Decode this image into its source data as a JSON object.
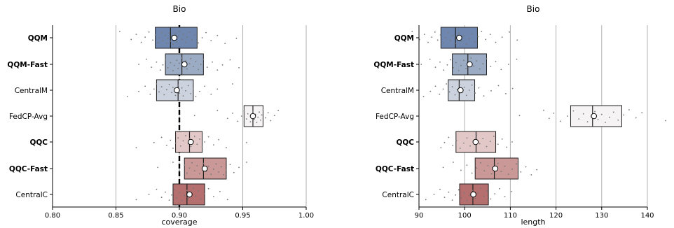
{
  "chart_data": [
    {
      "type": "box",
      "title": "Bio",
      "xlabel": "coverage",
      "ylabel": "",
      "xlim": [
        0.8,
        1.0
      ],
      "xticks": [
        "0.80",
        "0.85",
        "0.90",
        "0.95",
        "1.00"
      ],
      "xtick_values": [
        0.8,
        0.85,
        0.9,
        0.95,
        1.0
      ],
      "grid": "vertical",
      "reference_line": 0.9,
      "categories": [
        "QQM",
        "QQM-Fast",
        "CentralM",
        "FedCP-Avg",
        "QQC",
        "QQC-Fast",
        "CentralC"
      ],
      "bold_categories": [
        "QQM",
        "QQM-Fast",
        "QQC",
        "QQC-Fast"
      ],
      "boxes": [
        {
          "q1": 0.881,
          "median": 0.893,
          "q3": 0.914,
          "mean": 0.896,
          "color": "#6f87ae"
        },
        {
          "q1": 0.889,
          "median": 0.902,
          "q3": 0.919,
          "mean": 0.904,
          "color": "#9cabc4"
        },
        {
          "q1": 0.882,
          "median": 0.899,
          "q3": 0.911,
          "mean": 0.898,
          "color": "#cdd3de"
        },
        {
          "q1": 0.951,
          "median": 0.958,
          "q3": 0.966,
          "mean": 0.958,
          "color": "#f5f3f3"
        },
        {
          "q1": 0.897,
          "median": 0.908,
          "q3": 0.918,
          "mean": 0.909,
          "color": "#e2c8c7"
        },
        {
          "q1": 0.904,
          "median": 0.919,
          "q3": 0.937,
          "mean": 0.92,
          "color": "#c99897"
        },
        {
          "q1": 0.895,
          "median": 0.906,
          "q3": 0.92,
          "mean": 0.908,
          "color": "#b56f6e"
        }
      ],
      "points": [
        [
          0.853,
          0.862,
          0.866,
          0.87,
          0.873,
          0.876,
          0.879,
          0.881,
          0.883,
          0.884,
          0.886,
          0.887,
          0.889,
          0.89,
          0.891,
          0.892,
          0.893,
          0.894,
          0.895,
          0.896,
          0.897,
          0.898,
          0.899,
          0.9,
          0.902,
          0.903,
          0.905,
          0.906,
          0.908,
          0.91,
          0.912,
          0.915,
          0.918,
          0.921,
          0.925,
          0.93,
          0.936,
          0.945
        ],
        [
          0.868,
          0.874,
          0.878,
          0.882,
          0.885,
          0.887,
          0.889,
          0.891,
          0.893,
          0.895,
          0.896,
          0.898,
          0.899,
          0.9,
          0.902,
          0.903,
          0.905,
          0.906,
          0.908,
          0.909,
          0.911,
          0.913,
          0.915,
          0.917,
          0.919,
          0.922,
          0.926,
          0.93,
          0.934,
          0.94,
          0.947
        ],
        [
          0.859,
          0.868,
          0.873,
          0.877,
          0.88,
          0.882,
          0.884,
          0.886,
          0.888,
          0.89,
          0.892,
          0.894,
          0.895,
          0.897,
          0.898,
          0.899,
          0.9,
          0.902,
          0.903,
          0.905,
          0.907,
          0.909,
          0.911,
          0.913,
          0.916,
          0.92,
          0.925,
          0.93,
          0.942
        ],
        [
          0.912,
          0.93,
          0.938,
          0.942,
          0.946,
          0.949,
          0.951,
          0.953,
          0.954,
          0.956,
          0.957,
          0.958,
          0.959,
          0.96,
          0.961,
          0.962,
          0.963,
          0.964,
          0.965,
          0.966,
          0.968,
          0.97,
          0.972,
          0.975,
          0.978
        ],
        [
          0.866,
          0.88,
          0.886,
          0.89,
          0.893,
          0.895,
          0.897,
          0.899,
          0.901,
          0.903,
          0.905,
          0.907,
          0.908,
          0.909,
          0.911,
          0.912,
          0.914,
          0.916,
          0.918,
          0.92,
          0.923,
          0.927,
          0.931,
          0.937,
          0.953
        ],
        [
          0.883,
          0.895,
          0.9,
          0.904,
          0.906,
          0.908,
          0.91,
          0.912,
          0.914,
          0.916,
          0.918,
          0.919,
          0.921,
          0.923,
          0.925,
          0.927,
          0.929,
          0.931,
          0.933,
          0.935,
          0.937,
          0.94,
          0.943,
          0.947,
          0.953
        ],
        [
          0.866,
          0.876,
          0.882,
          0.886,
          0.889,
          0.892,
          0.894,
          0.896,
          0.898,
          0.9,
          0.902,
          0.904,
          0.906,
          0.907,
          0.909,
          0.911,
          0.913,
          0.915,
          0.917,
          0.92,
          0.923,
          0.927,
          0.932,
          0.938
        ]
      ]
    },
    {
      "type": "box",
      "title": "Bio",
      "xlabel": "length",
      "ylabel": "",
      "xlim": [
        90,
        140
      ],
      "xticks": [
        "90",
        "100",
        "110",
        "120",
        "130",
        "140"
      ],
      "xtick_values": [
        90,
        100,
        110,
        120,
        130,
        140
      ],
      "grid": "vertical",
      "categories": [
        "QQM",
        "QQM-Fast",
        "CentralM",
        "FedCP-Avg",
        "QQC",
        "QQC-Fast",
        "CentralC"
      ],
      "bold_categories": [
        "QQM",
        "QQM-Fast",
        "QQC",
        "QQC-Fast"
      ],
      "boxes": [
        {
          "q1": 94.8,
          "median": 98.0,
          "q3": 102.8,
          "mean": 98.8,
          "color": "#6f87ae"
        },
        {
          "q1": 97.3,
          "median": 100.7,
          "q3": 104.8,
          "mean": 101.1,
          "color": "#9cabc4"
        },
        {
          "q1": 96.4,
          "median": 98.8,
          "q3": 102.2,
          "mean": 99.1,
          "color": "#cdd3de"
        },
        {
          "q1": 123.2,
          "median": 128.0,
          "q3": 134.4,
          "mean": 128.3,
          "color": "#f5f3f3"
        },
        {
          "q1": 98.1,
          "median": 102.5,
          "q3": 106.8,
          "mean": 102.4,
          "color": "#e2c8c7"
        },
        {
          "q1": 102.3,
          "median": 106.5,
          "q3": 111.7,
          "mean": 106.7,
          "color": "#c99897"
        },
        {
          "q1": 98.9,
          "median": 101.8,
          "q3": 105.2,
          "mean": 101.9,
          "color": "#b56f6e"
        }
      ],
      "points": [
        [
          88.5,
          90.1,
          91.2,
          92.0,
          92.8,
          93.5,
          94.1,
          94.7,
          95.3,
          95.9,
          96.4,
          96.9,
          97.4,
          97.9,
          98.3,
          98.8,
          99.3,
          99.8,
          100.4,
          101.0,
          101.6,
          102.2,
          102.9,
          103.7,
          104.6,
          105.6,
          106.8,
          108.2,
          109.8,
          111.5
        ],
        [
          90.5,
          92.4,
          93.6,
          94.6,
          95.4,
          96.2,
          96.9,
          97.5,
          98.1,
          98.7,
          99.2,
          99.8,
          100.3,
          100.9,
          101.4,
          102.0,
          102.6,
          103.3,
          104.0,
          104.8,
          105.7,
          106.8,
          108.0,
          109.6,
          111.4
        ],
        [
          91.0,
          92.5,
          93.6,
          94.5,
          95.3,
          96.0,
          96.7,
          97.3,
          97.9,
          98.4,
          98.9,
          99.4,
          99.9,
          100.4,
          101.0,
          101.6,
          102.3,
          103.1,
          104.2,
          105.8,
          107.4,
          109.0,
          110.5
        ],
        [
          112.0,
          117.3,
          118.5,
          119.5,
          121.0,
          122.5,
          123.8,
          125.0,
          126.0,
          126.9,
          127.7,
          128.5,
          129.2,
          130.0,
          130.8,
          131.7,
          132.6,
          133.6,
          134.8,
          136.0,
          137.5,
          138.8,
          144.0
        ],
        [
          94.8,
          95.6,
          96.5,
          97.4,
          98.2,
          99.0,
          99.8,
          100.5,
          101.2,
          101.9,
          102.6,
          103.3,
          104.0,
          104.8,
          105.6,
          106.4,
          107.3,
          108.2,
          109.2,
          110.4
        ],
        [
          95.3,
          97.5,
          99.2,
          100.5,
          101.6,
          102.6,
          103.5,
          104.3,
          105.1,
          105.9,
          106.6,
          107.3,
          108.0,
          108.8,
          109.6,
          110.4,
          111.3,
          112.3,
          113.4,
          114.6,
          115.8
        ],
        [
          91.5,
          93.3,
          94.6,
          95.6,
          96.5,
          97.3,
          98.0,
          98.7,
          99.3,
          99.9,
          100.5,
          101.1,
          101.7,
          102.3,
          102.9,
          103.5,
          104.2,
          104.9,
          105.7,
          106.6,
          107.6,
          108.8,
          110.3
        ]
      ]
    }
  ]
}
